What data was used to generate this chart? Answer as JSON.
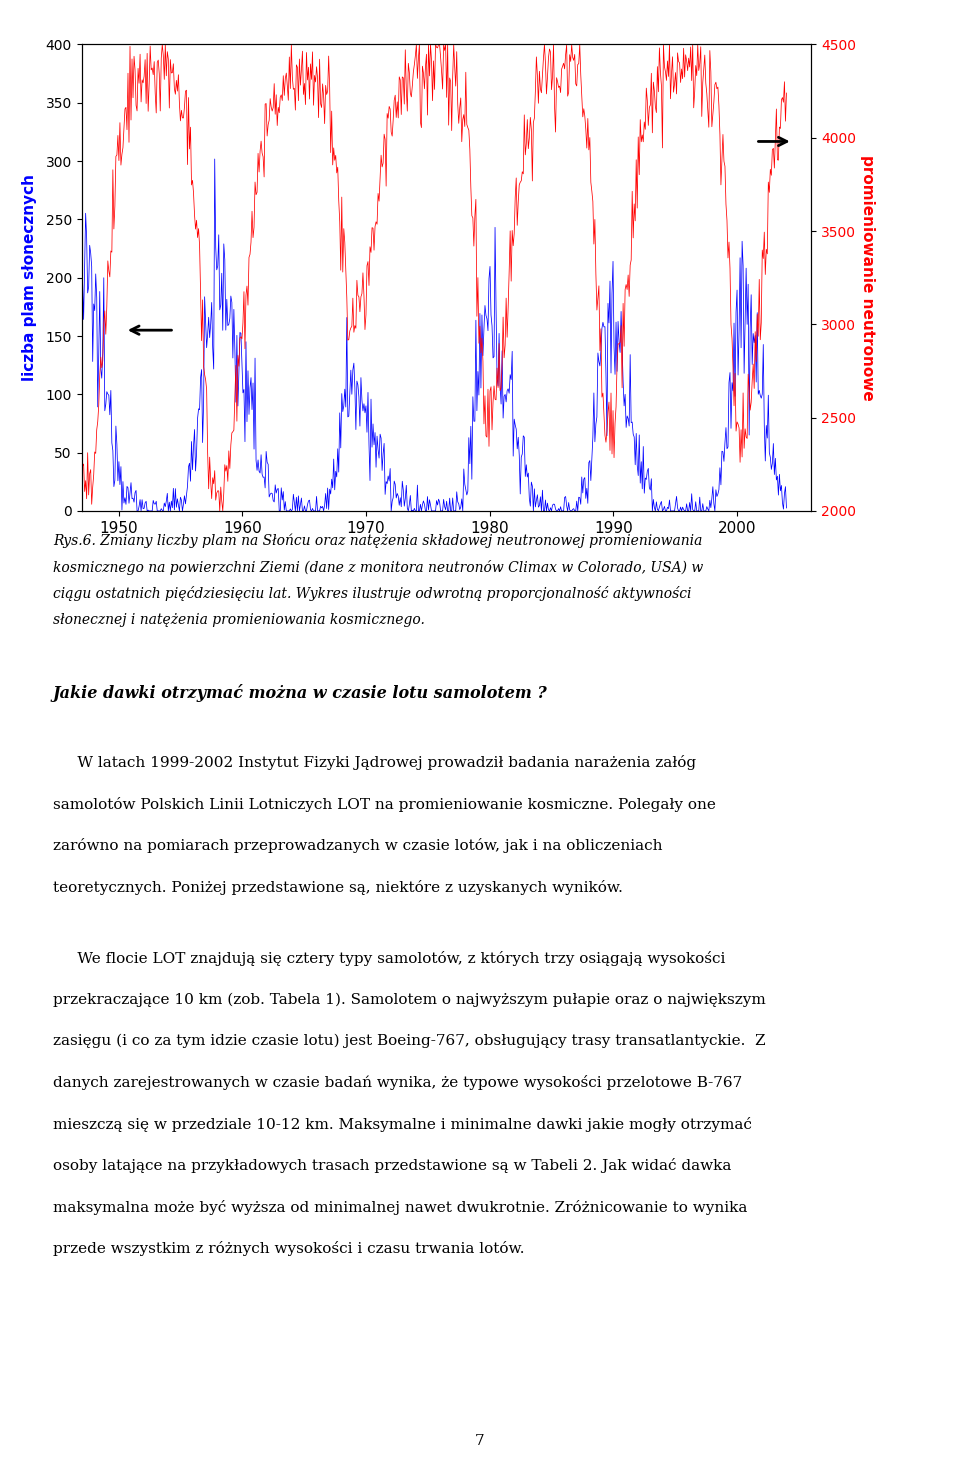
{
  "left_ylabel": "liczba plam słonecznych",
  "right_ylabel": "promieniowanie neutronowe",
  "xlim": [
    1947,
    2006
  ],
  "left_ylim": [
    0,
    400
  ],
  "right_ylim": [
    2000,
    4500
  ],
  "left_yticks": [
    0,
    50,
    100,
    150,
    200,
    250,
    300,
    350,
    400
  ],
  "right_yticks": [
    2000,
    2500,
    3000,
    3500,
    4000,
    4500
  ],
  "xticks": [
    1950,
    1960,
    1970,
    1980,
    1990,
    2000
  ],
  "sunspot_color": "#0000FF",
  "neutron_color": "#FF0000",
  "left_label_color": "#0000FF",
  "right_label_color": "#FF0000",
  "caption": "Rys.6. Zmiany liczby plam na Słońcu oraz natężenia składowej neutronowej promieniowania kosmicznego na powierzchni Ziemi (dane z monitora neutronów Climax w Colorado, USA) w ciągu ostatnich pięćdziesięciu lat. Wykres ilustruje odwrotną proporcjonalność aktywności słonecznej i natężenia promieniowania kosmicznego.",
  "bold_heading": "Jakie dawki otrzymać można w czasie lotu samolotem ?",
  "paragraph1": "W latach 1999-2002 Instytut Fizyki Jądrowej prowadził badania narażenia załóg samolotów Polskich Linii Lotniczych LOT na promieniowanie kosmiczne. Polegały one zarówno na pomiarach przeprowadzanych w czasie lotów, jak i na obliczeniach teoretycznych. Poniżej przedstawione są, niektóre z uzyskanych wyników.",
  "paragraph2": "We flocie LOT znajdują się cztery typy samolotów, z których trzy osiągają wysokości przekraczające 10 km (zob. Tabela 1). Samolotem o najwyższym pułapie oraz o największym zasięgu (i co za tym idzie czasie lotu) jest Boeing-767, obsługujący trasy transatlantyckie.  Z danych zarejestrowanych w czasie badań wynika, że typowe wysokości przelotowe B-767 mieszczą się w przedziale 10-12 km. Maksymalne i minimalne dawki jakie mogły otrzymać osoby latające na przykładowych trasach przedstawione są w Tabeli 2. Jak widać dawka maksymalna może być wyższa od minimalnej nawet dwukrotnie. Zróżnicowanie to wynika przede wszystkim z różnych wysokości i czasu trwania lotów.",
  "page_number": "7"
}
